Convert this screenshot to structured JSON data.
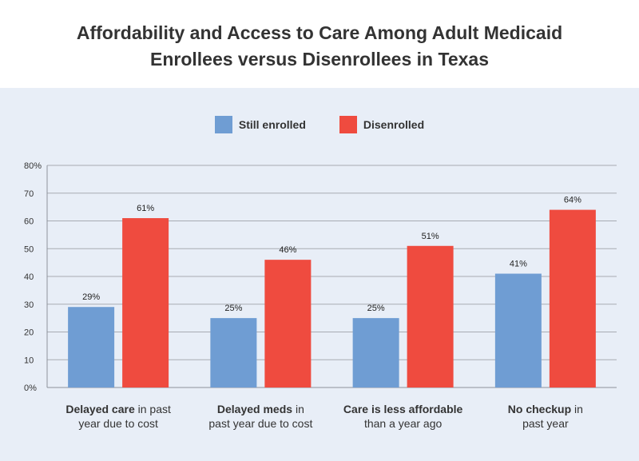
{
  "chart_data": {
    "type": "bar",
    "title_lines": [
      "Affordability and Access to Care Among Adult Medicaid",
      "Enrollees versus Disenrollees in Texas"
    ],
    "categories": [
      {
        "bold": "Delayed care",
        "rest": " in past",
        "line2": "year due to cost"
      },
      {
        "bold": "Delayed meds",
        "rest": " in",
        "line2": "past year due to cost"
      },
      {
        "bold": "Care is less affordable",
        "rest": "",
        "line2": "than a year ago"
      },
      {
        "bold": "No checkup",
        "rest": " in",
        "line2": "past year"
      }
    ],
    "series": [
      {
        "name": "Still enrolled",
        "color": "#6f9dd3",
        "values": [
          29,
          25,
          25,
          41
        ],
        "labels": [
          "29%",
          "25%",
          "25%",
          "41%"
        ]
      },
      {
        "name": "Disenrolled",
        "color": "#ef4b3f",
        "values": [
          61,
          46,
          51,
          64
        ],
        "labels": [
          "61%",
          "46%",
          "51%",
          "64%"
        ]
      }
    ],
    "ylim": [
      0,
      80
    ],
    "yticks": [
      0,
      10,
      20,
      30,
      40,
      50,
      60,
      70,
      80
    ],
    "ytick_labels": [
      "0%",
      "10",
      "20",
      "30",
      "40",
      "50",
      "60",
      "70",
      "80%"
    ],
    "grid": true,
    "legend": "top-center",
    "xlabel": "",
    "ylabel": ""
  }
}
